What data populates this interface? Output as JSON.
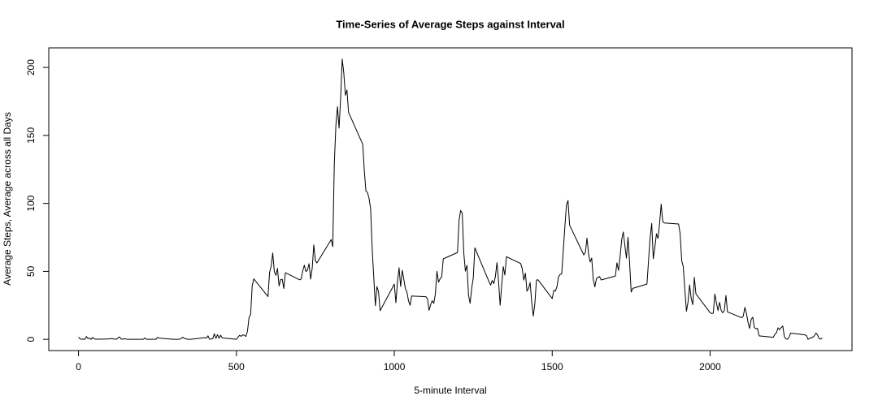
{
  "chart_data": {
    "type": "line",
    "title": "Time-Series of Average Steps against Interval",
    "x_label": "5-minute Interval",
    "y_label": "Average Steps, Average across all Days",
    "x": [
      0,
      5,
      10,
      15,
      20,
      25,
      30,
      35,
      40,
      45,
      50,
      55,
      100,
      105,
      110,
      115,
      120,
      125,
      130,
      135,
      140,
      145,
      150,
      155,
      200,
      205,
      210,
      215,
      220,
      225,
      230,
      235,
      240,
      245,
      250,
      255,
      300,
      305,
      310,
      315,
      320,
      325,
      330,
      335,
      340,
      345,
      350,
      355,
      400,
      405,
      410,
      415,
      420,
      425,
      430,
      435,
      440,
      445,
      450,
      455,
      500,
      505,
      510,
      515,
      520,
      525,
      530,
      535,
      540,
      545,
      550,
      555,
      600,
      605,
      610,
      615,
      620,
      625,
      630,
      635,
      640,
      645,
      650,
      655,
      700,
      705,
      710,
      715,
      720,
      725,
      730,
      735,
      740,
      745,
      750,
      755,
      800,
      805,
      810,
      815,
      820,
      825,
      830,
      835,
      840,
      845,
      850,
      855,
      900,
      905,
      910,
      915,
      920,
      925,
      930,
      935,
      940,
      945,
      950,
      955,
      1000,
      1005,
      1010,
      1015,
      1020,
      1025,
      1030,
      1035,
      1040,
      1045,
      1050,
      1055,
      1100,
      1105,
      1110,
      1115,
      1120,
      1125,
      1130,
      1135,
      1140,
      1145,
      1150,
      1155,
      1200,
      1205,
      1210,
      1215,
      1220,
      1225,
      1230,
      1235,
      1240,
      1245,
      1250,
      1255,
      1300,
      1305,
      1310,
      1315,
      1320,
      1325,
      1330,
      1335,
      1340,
      1345,
      1350,
      1355,
      1400,
      1405,
      1410,
      1415,
      1420,
      1425,
      1430,
      1435,
      1440,
      1445,
      1450,
      1455,
      1500,
      1505,
      1510,
      1515,
      1520,
      1525,
      1530,
      1535,
      1540,
      1545,
      1550,
      1555,
      1600,
      1605,
      1610,
      1615,
      1620,
      1625,
      1630,
      1635,
      1640,
      1645,
      1650,
      1655,
      1700,
      1705,
      1710,
      1715,
      1720,
      1725,
      1730,
      1735,
      1740,
      1745,
      1750,
      1755,
      1800,
      1805,
      1810,
      1815,
      1820,
      1825,
      1830,
      1835,
      1840,
      1845,
      1850,
      1855,
      1900,
      1905,
      1910,
      1915,
      1920,
      1925,
      1930,
      1935,
      1940,
      1945,
      1950,
      1955,
      2000,
      2005,
      2010,
      2015,
      2020,
      2025,
      2030,
      2035,
      2040,
      2045,
      2050,
      2055,
      2100,
      2105,
      2110,
      2115,
      2120,
      2125,
      2130,
      2135,
      2140,
      2145,
      2150,
      2155,
      2200,
      2205,
      2210,
      2215,
      2220,
      2225,
      2230,
      2235,
      2240,
      2245,
      2250,
      2255,
      2300,
      2305,
      2310,
      2315,
      2320,
      2325,
      2330,
      2335,
      2340,
      2345,
      2350,
      2355
    ],
    "series": [
      {
        "name": "Average Steps",
        "color": "#000000",
        "values": [
          1.7,
          0.3,
          0.1,
          0.2,
          0.1,
          2.1,
          0.5,
          0.9,
          0,
          1.5,
          0.3,
          0.1,
          0.3,
          0.7,
          0.2,
          0.3,
          0,
          1.1,
          1.8,
          0.2,
          0.2,
          0.4,
          0.3,
          0,
          0,
          0,
          1.1,
          0,
          0,
          0.1,
          0,
          0.2,
          0,
          0,
          1.5,
          0.9,
          0,
          0,
          0,
          0,
          0.2,
          0.6,
          1.6,
          0.6,
          0.5,
          0.1,
          0,
          0,
          1.2,
          0.9,
          2.6,
          0,
          0.3,
          0.4,
          4.1,
          0.7,
          3.5,
          0.8,
          3.1,
          1.1,
          0,
          1.6,
          3.0,
          2.2,
          3.3,
          3.0,
          2.1,
          6.1,
          16.0,
          18.3,
          39.5,
          44.5,
          31.5,
          49.3,
          53.8,
          63.5,
          50.0,
          47.1,
          52.2,
          39.3,
          44.0,
          44.2,
          37.4,
          49.0,
          43.8,
          44.4,
          50.5,
          54.5,
          49.9,
          51.0,
          55.7,
          44.3,
          52.3,
          69.5,
          57.8,
          56.2,
          73.4,
          68.2,
          129.4,
          157.5,
          171.2,
          155.4,
          177.3,
          206.2,
          195.9,
          179.6,
          183.4,
          167.0,
          143.5,
          124.0,
          109.1,
          108.1,
          103.7,
          96.0,
          66.2,
          45.2,
          24.8,
          38.8,
          35.0,
          21.1,
          40.6,
          27.0,
          42.4,
          52.7,
          38.9,
          50.8,
          44.3,
          37.4,
          34.7,
          28.3,
          25.1,
          31.9,
          31.4,
          29.7,
          21.3,
          25.5,
          28.4,
          26.5,
          33.4,
          50.0,
          42.0,
          44.6,
          46.0,
          59.2,
          63.9,
          87.7,
          94.8,
          92.8,
          63.4,
          50.2,
          54.5,
          32.4,
          26.5,
          37.7,
          45.1,
          67.3,
          42.3,
          39.9,
          43.3,
          41.0,
          46.2,
          56.4,
          42.8,
          25.1,
          39.9,
          53.5,
          47.3,
          60.8,
          55.8,
          52.0,
          43.6,
          48.7,
          35.5,
          37.5,
          41.8,
          27.5,
          17.1,
          26.1,
          43.6,
          43.8,
          30.0,
          36.1,
          35.5,
          38.8,
          46.0,
          47.8,
          48.1,
          65.3,
          82.9,
          98.7,
          102.1,
          84.0,
          62.1,
          64.1,
          74.5,
          63.2,
          56.9,
          59.8,
          43.9,
          38.6,
          44.7,
          45.5,
          46.2,
          43.7,
          46.6,
          56.3,
          50.7,
          61.2,
          73.4,
          79.0,
          68.9,
          59.7,
          75.1,
          56.5,
          34.8,
          37.5,
          40.7,
          58.0,
          74.7,
          85.3,
          59.3,
          67.8,
          77.7,
          74.2,
          85.3,
          99.5,
          86.6,
          85.6,
          84.9,
          77.8,
          58.0,
          53.4,
          36.3,
          20.7,
          27.4,
          40.0,
          30.2,
          25.5,
          45.7,
          33.5,
          19.6,
          19.0,
          19.3,
          33.3,
          26.8,
          21.2,
          27.3,
          21.3,
          19.5,
          21.3,
          32.3,
          20.2,
          15.9,
          17.2,
          23.5,
          19.2,
          12.5,
          8.0,
          14.7,
          16.3,
          8.7,
          7.8,
          8.1,
          2.6,
          1.5,
          3.7,
          4.8,
          8.5,
          7.1,
          8.7,
          9.8,
          2.2,
          0.3,
          0.1,
          1.6,
          4.6,
          3.3,
          2.8,
          0,
          0.8,
          1.0,
          1.6,
          2.6,
          4.7,
          3.3,
          0.6,
          0.2,
          1.1
        ]
      }
    ],
    "xlim": [
      -94.2,
      2449.2
    ],
    "ylim": [
      -8.25,
      214.4
    ],
    "xticks": [
      0,
      500,
      1000,
      1500,
      2000
    ],
    "yticks": [
      0,
      50,
      100,
      150,
      200
    ],
    "grid": false
  }
}
